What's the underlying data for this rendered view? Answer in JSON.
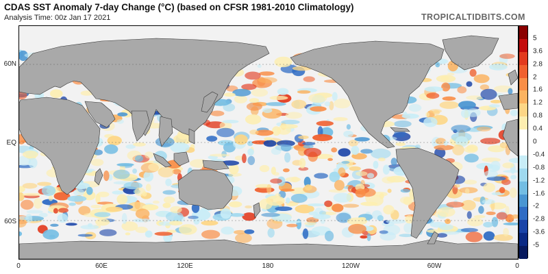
{
  "header": {
    "title": "CDAS SST Anomaly 7-day Change (°C) (based on CFSR 1981-2010 Climatology)",
    "subtitle": "Analysis Time: 00z Jan 17 2021",
    "brand": "TROPICALTIDBITS.COM"
  },
  "map": {
    "lat_labels": [
      "60N",
      "EQ",
      "60S"
    ],
    "lon_labels": [
      "0",
      "60E",
      "120E",
      "180",
      "120W",
      "60W",
      "0"
    ]
  },
  "colorbar": {
    "labels": [
      "5",
      "3.6",
      "2.8",
      "2",
      "1.6",
      "1.2",
      "0.8",
      "0.4",
      "0",
      "-0.4",
      "-0.8",
      "-1.2",
      "-1.6",
      "-2",
      "-2.8",
      "-3.6",
      "-5"
    ],
    "colors": [
      "#8b0000",
      "#c40c0c",
      "#e23a1e",
      "#f0602e",
      "#f98e47",
      "#fbb361",
      "#fdd686",
      "#fdeeb0",
      "#ffffff",
      "#ffffff",
      "#c8edf7",
      "#9fd9ef",
      "#73bde3",
      "#4a96d2",
      "#2f6cc4",
      "#1a44a8",
      "#0b2a85",
      "#081a5e"
    ]
  },
  "colors": {
    "land": "#a9a9a9",
    "ocean_base": "#f2f2f2",
    "border": "#333333"
  }
}
